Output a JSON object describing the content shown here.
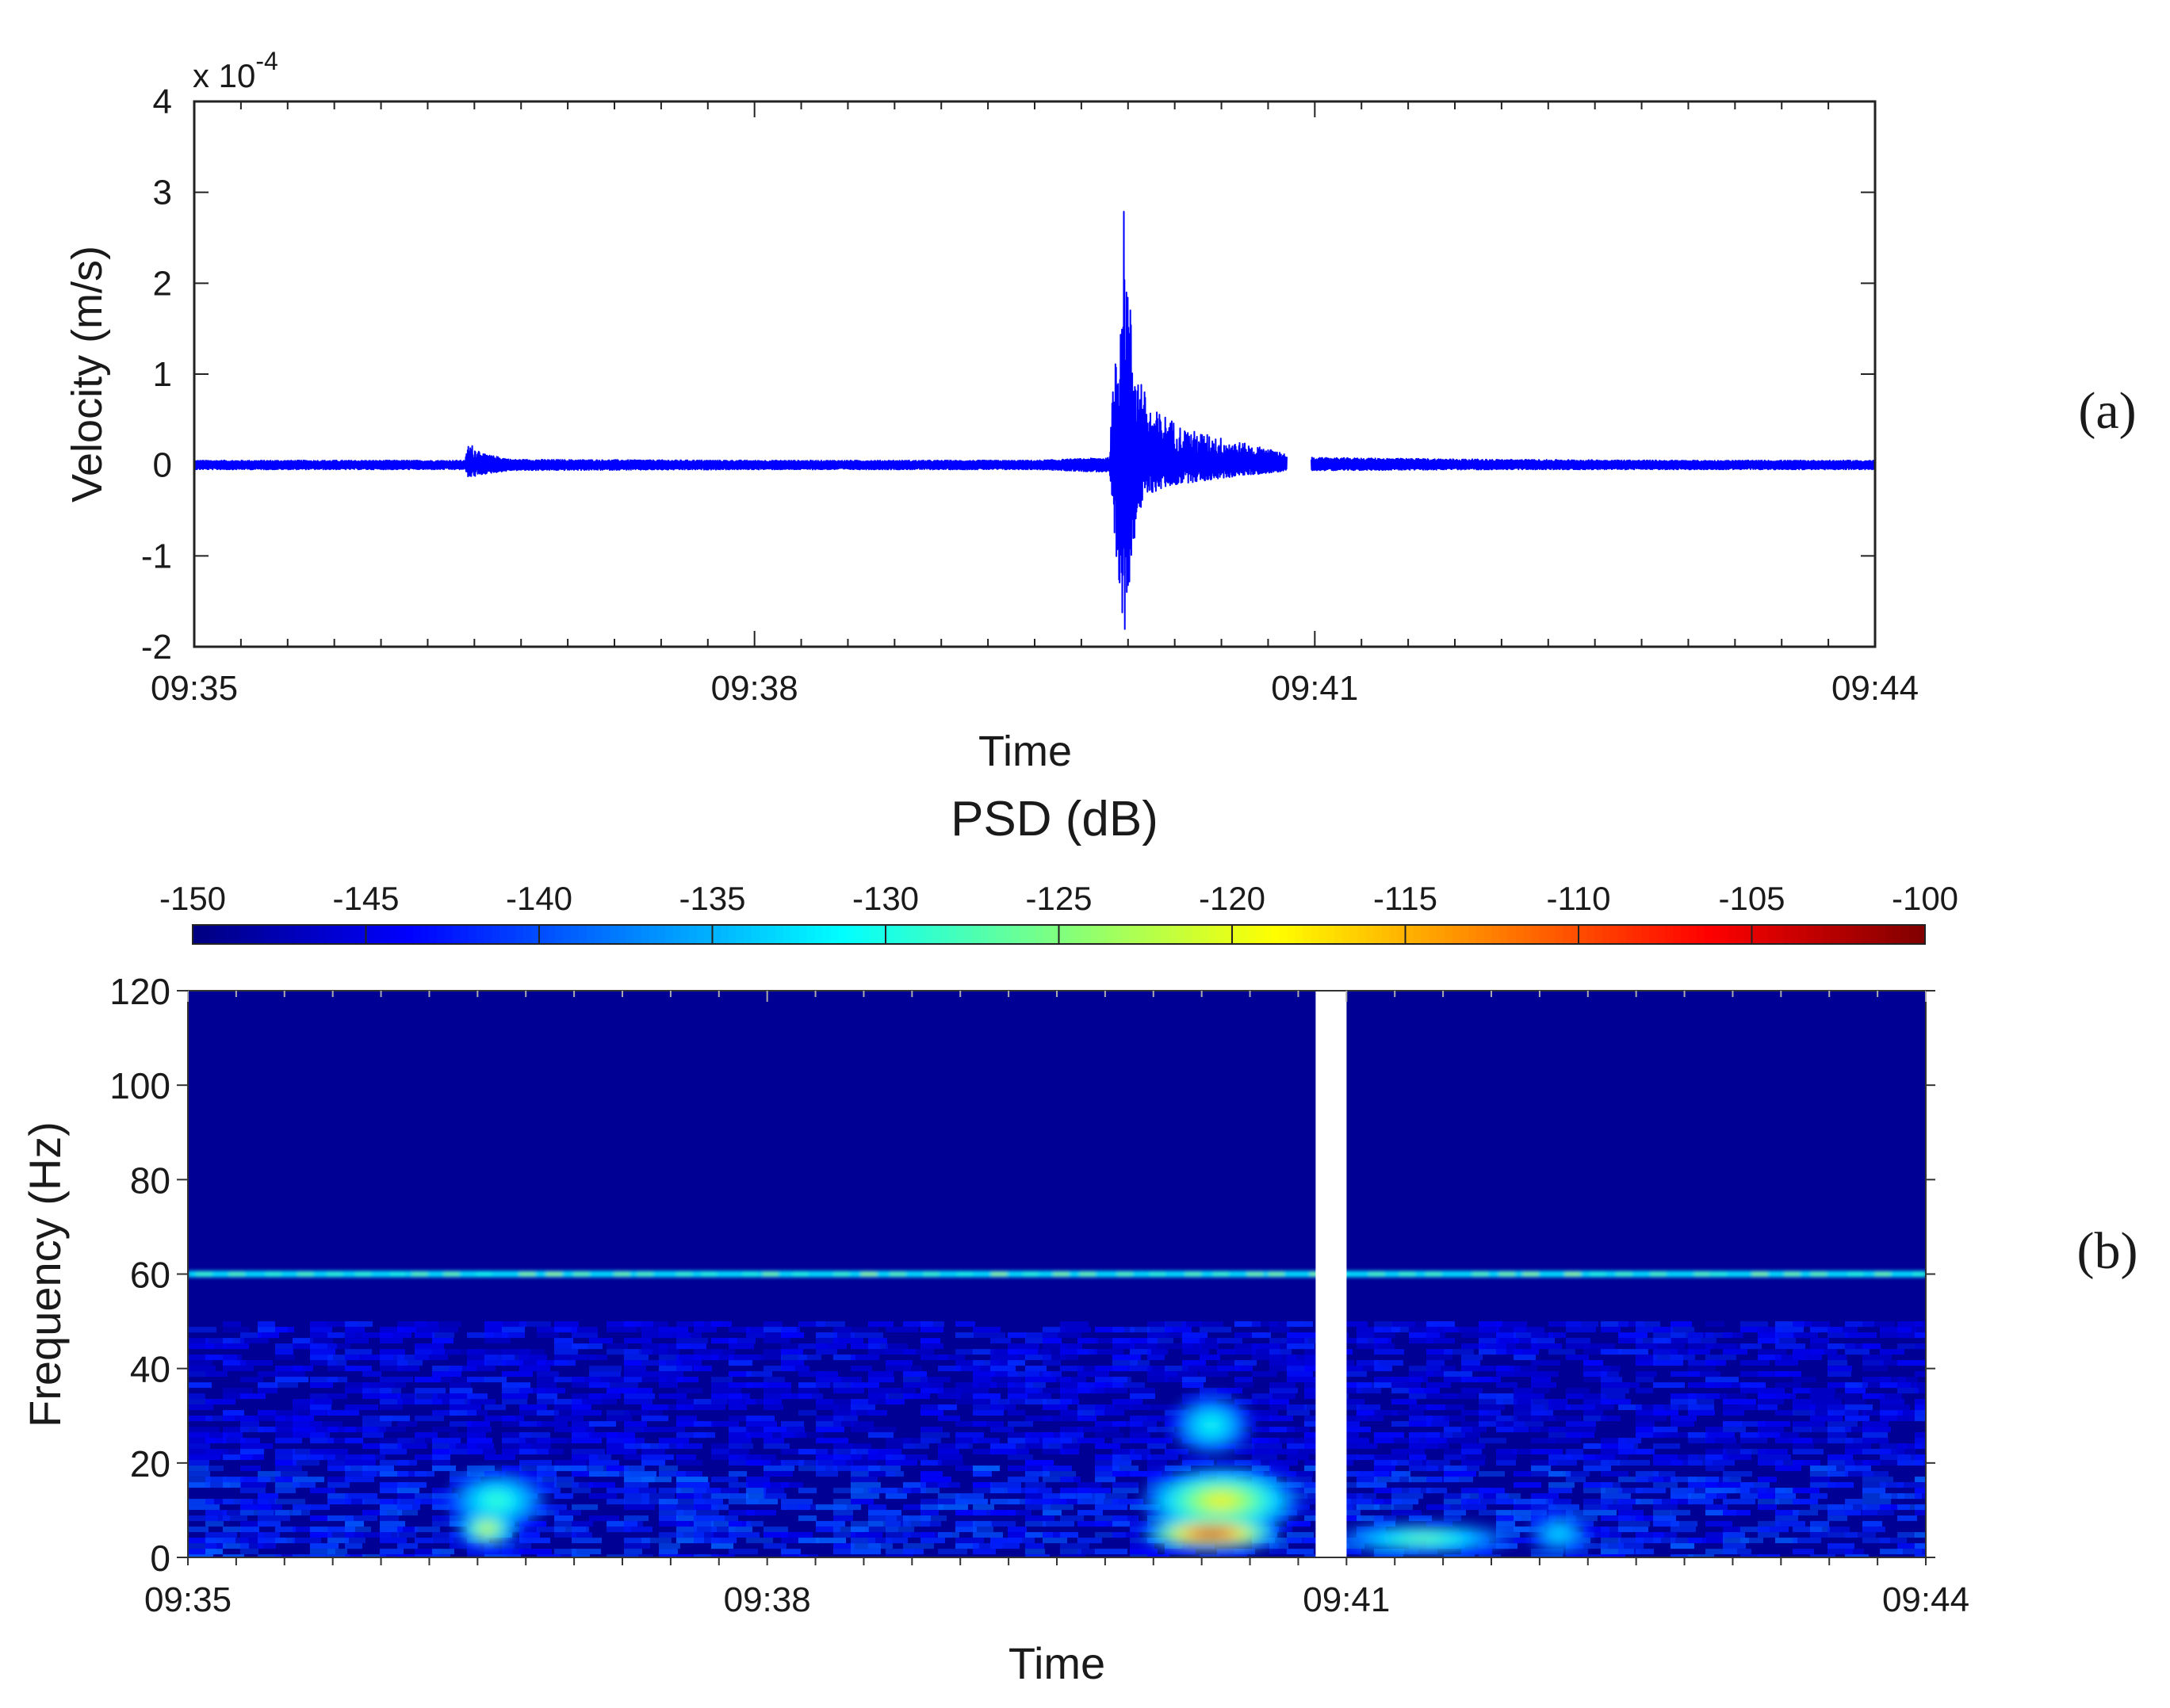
{
  "chart_data": [
    {
      "type": "line",
      "panel_label": "(a)",
      "xlabel": "Time",
      "ylabel": "Velocity (m/s)",
      "y_multiplier": "x 10",
      "y_multiplier_exponent": "-4",
      "x_ticks": [
        "09:35",
        "09:38",
        "09:41",
        "09:44"
      ],
      "x_range_min": [
        0,
        9
      ],
      "xlim": [
        "09:35",
        "09:44"
      ],
      "ylim": [
        -2,
        4
      ],
      "y_ticks": [
        -2,
        -1,
        0,
        1,
        2,
        3,
        4
      ],
      "grid": false,
      "line_color": "#0000ff",
      "data_gap_min": [
        5.85,
        5.98
      ],
      "series": [
        {
          "x_min": [
            0,
            1.45,
            1.47,
            1.55,
            1.7,
            3.0,
            4.5,
            4.9,
            4.93,
            4.96,
            4.98,
            5.0,
            5.02,
            5.05,
            5.07,
            5.1,
            5.14,
            5.2,
            5.3,
            5.4,
            5.5,
            5.6,
            5.7,
            5.8,
            5.84,
            6.0,
            7.0,
            8.0,
            9.0
          ],
          "envelope_upper": [
            0.05,
            0.05,
            0.25,
            0.12,
            0.06,
            0.05,
            0.05,
            0.08,
            1.3,
            2.0,
            2.95,
            2.05,
            1.6,
            1.05,
            1.0,
            0.7,
            0.6,
            0.55,
            0.4,
            0.35,
            0.3,
            0.25,
            0.2,
            0.15,
            0.12,
            0.08,
            0.06,
            0.05,
            0.05
          ],
          "envelope_lower": [
            -0.05,
            -0.05,
            -0.15,
            -0.1,
            -0.06,
            -0.05,
            -0.05,
            -0.08,
            -1.1,
            -1.7,
            -1.9,
            -1.45,
            -1.0,
            -0.6,
            -0.5,
            -0.35,
            -0.3,
            -0.25,
            -0.2,
            -0.18,
            -0.15,
            -0.12,
            -0.1,
            -0.08,
            -0.06,
            -0.06,
            -0.05,
            -0.05,
            -0.05
          ]
        }
      ]
    },
    {
      "type": "heatmap",
      "panel_label": "(b)",
      "xlabel": "Time",
      "ylabel": "Frequency (Hz)",
      "colorbar_title": "PSD (dB)",
      "colorbar_ticks": [
        -150,
        -145,
        -140,
        -135,
        -130,
        -125,
        -120,
        -115,
        -110,
        -105,
        -100
      ],
      "colorbar_range": [
        -150,
        -100
      ],
      "colormap": "jet",
      "x_ticks": [
        "09:35",
        "09:38",
        "09:41",
        "09:44"
      ],
      "x_range_min": [
        0,
        9
      ],
      "ylim": [
        0,
        120
      ],
      "y_ticks": [
        0,
        20,
        40,
        60,
        80,
        100,
        120
      ],
      "background_psd_db": -149,
      "data_gap_min": [
        5.84,
        6.0
      ],
      "line_60hz": {
        "freq_hz": 60,
        "psd_db": -133
      },
      "hotspots": [
        {
          "t_center_min": 1.55,
          "f_center_hz": 6,
          "t_width_min": 0.3,
          "f_width_hz": 7,
          "peak_db": -118
        },
        {
          "t_center_min": 1.6,
          "f_center_hz": 12,
          "t_width_min": 0.5,
          "f_width_hz": 12,
          "peak_db": -128
        },
        {
          "t_center_min": 5.3,
          "f_center_hz": 5,
          "t_width_min": 0.7,
          "f_width_hz": 7,
          "peak_db": -102
        },
        {
          "t_center_min": 5.35,
          "f_center_hz": 12,
          "t_width_min": 0.8,
          "f_width_hz": 14,
          "peak_db": -118
        },
        {
          "t_center_min": 5.3,
          "f_center_hz": 28,
          "t_width_min": 0.4,
          "f_width_hz": 12,
          "peak_db": -130
        },
        {
          "t_center_min": 6.4,
          "f_center_hz": 4,
          "t_width_min": 0.9,
          "f_width_hz": 6,
          "peak_db": -125
        },
        {
          "t_center_min": 7.1,
          "f_center_hz": 5,
          "t_width_min": 0.3,
          "f_width_hz": 8,
          "peak_db": -132
        }
      ]
    }
  ]
}
